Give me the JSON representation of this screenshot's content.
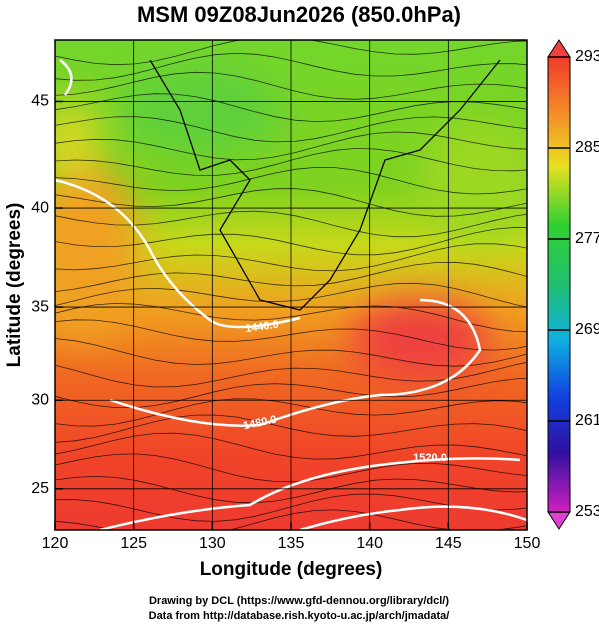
{
  "chart_data": {
    "type": "map",
    "title": "MSM 09Z08Jun2026 (850.0hPa)",
    "x_label": "Longitude (degrees)",
    "y_label": "Latitude  (degrees)",
    "xlim": [
      120,
      150
    ],
    "ylim": [
      22.6,
      47.7
    ],
    "xticks": [
      120,
      125,
      130,
      135,
      140,
      145,
      150
    ],
    "yticks": [
      25,
      30,
      35,
      40,
      45
    ],
    "projection": "mercator",
    "grid": true,
    "colorbar": {
      "lim": [
        253,
        293
      ],
      "ticks": [
        253,
        261,
        269,
        277,
        285,
        293
      ]
    },
    "contour_labels": [
      "1440.0",
      "1480.0",
      "1520.0"
    ]
  },
  "footer": [
    "Drawing by DCL (https://www.gfd-dennou.org/library/dcl/)",
    "Data from http://database.rish.kyoto-u.ac.jp/arch/jmadata/"
  ]
}
